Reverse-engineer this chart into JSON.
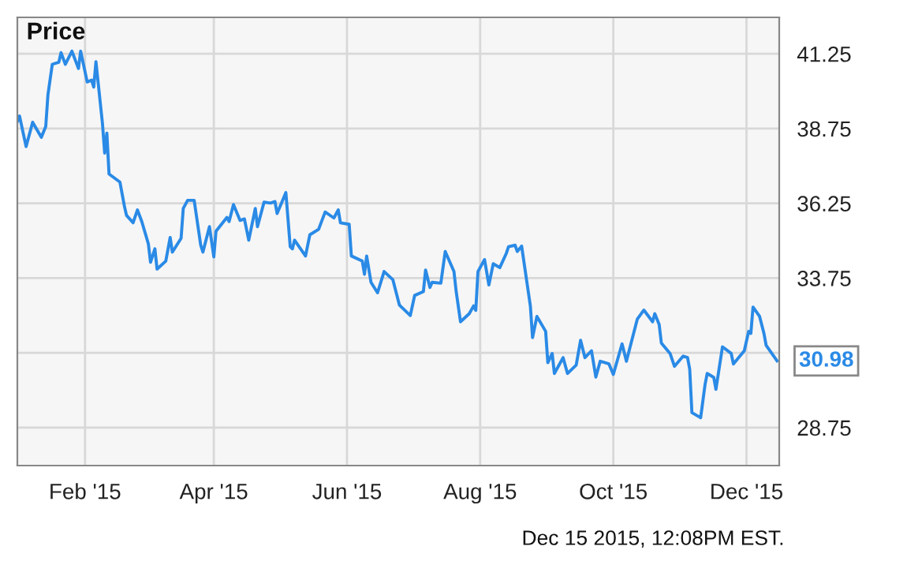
{
  "chart_data": {
    "type": "line",
    "title": "Price",
    "x": [
      "2015-01-01",
      "2015-01-02",
      "2015-01-05",
      "2015-01-08",
      "2015-01-12",
      "2015-01-14",
      "2015-01-15",
      "2015-01-17",
      "2015-01-20",
      "2015-01-21",
      "2015-01-23",
      "2015-01-26",
      "2015-01-29",
      "2015-01-30",
      "2015-02-02",
      "2015-02-04",
      "2015-02-05",
      "2015-02-06",
      "2015-02-09",
      "2015-02-10",
      "2015-02-11",
      "2015-02-12",
      "2015-02-17",
      "2015-02-19",
      "2015-02-20",
      "2015-02-23",
      "2015-02-25",
      "2015-02-27",
      "2015-03-02",
      "2015-03-03",
      "2015-03-05",
      "2015-03-06",
      "2015-03-10",
      "2015-03-12",
      "2015-03-13",
      "2015-03-17",
      "2015-03-18",
      "2015-03-20",
      "2015-03-23",
      "2015-03-26",
      "2015-03-27",
      "2015-03-30",
      "2015-04-01",
      "2015-04-02",
      "2015-04-07",
      "2015-04-08",
      "2015-04-10",
      "2015-04-13",
      "2015-04-15",
      "2015-04-17",
      "2015-04-20",
      "2015-04-21",
      "2015-04-24",
      "2015-04-27",
      "2015-04-29",
      "2015-04-30",
      "2015-05-04",
      "2015-05-06",
      "2015-05-07",
      "2015-05-08",
      "2015-05-13",
      "2015-05-15",
      "2015-05-19",
      "2015-05-22",
      "2015-05-26",
      "2015-05-28",
      "2015-05-29",
      "2015-06-02",
      "2015-06-03",
      "2015-06-08",
      "2015-06-09",
      "2015-06-10",
      "2015-06-12",
      "2015-06-15",
      "2015-06-18",
      "2015-06-22",
      "2015-06-25",
      "2015-06-30",
      "2015-07-02",
      "2015-07-06",
      "2015-07-07",
      "2015-07-09",
      "2015-07-10",
      "2015-07-14",
      "2015-07-16",
      "2015-07-20",
      "2015-07-21",
      "2015-07-23",
      "2015-07-27",
      "2015-07-29",
      "2015-07-30",
      "2015-07-31",
      "2015-08-03",
      "2015-08-05",
      "2015-08-07",
      "2015-08-10",
      "2015-08-13",
      "2015-08-14",
      "2015-08-17",
      "2015-08-18",
      "2015-08-20",
      "2015-08-24",
      "2015-08-25",
      "2015-08-27",
      "2015-08-31",
      "2015-09-01",
      "2015-09-03",
      "2015-09-04",
      "2015-09-08",
      "2015-09-10",
      "2015-09-14",
      "2015-09-16",
      "2015-09-18",
      "2015-09-21",
      "2015-09-23",
      "2015-09-25",
      "2015-09-29",
      "2015-10-01",
      "2015-10-05",
      "2015-10-07",
      "2015-10-12",
      "2015-10-15",
      "2015-10-19",
      "2015-10-20",
      "2015-10-22",
      "2015-10-23",
      "2015-10-27",
      "2015-10-29",
      "2015-11-02",
      "2015-11-04",
      "2015-11-05",
      "2015-11-06",
      "2015-11-10",
      "2015-11-12",
      "2015-11-13",
      "2015-11-16",
      "2015-11-17",
      "2015-11-20",
      "2015-11-24",
      "2015-11-25",
      "2015-11-30",
      "2015-12-02",
      "2015-12-03",
      "2015-12-04",
      "2015-12-07",
      "2015-12-09",
      "2015-12-10",
      "2015-12-15"
    ],
    "series": [
      {
        "color": "#2a8ae6",
        "values": [
          38.99,
          39.17,
          38.15,
          38.96,
          38.46,
          38.82,
          39.87,
          40.9,
          40.97,
          41.29,
          40.9,
          41.34,
          40.76,
          41.34,
          40.31,
          40.37,
          40.14,
          40.99,
          38.91,
          37.93,
          38.6,
          37.23,
          36.96,
          36.17,
          35.85,
          35.6,
          36.03,
          35.64,
          34.9,
          34.28,
          34.73,
          34.05,
          34.32,
          35.11,
          34.62,
          35.08,
          36.08,
          36.35,
          36.35,
          34.85,
          34.62,
          35.47,
          34.46,
          35.32,
          35.78,
          35.64,
          36.21,
          35.68,
          35.73,
          35.02,
          36.08,
          35.47,
          36.29,
          36.26,
          36.31,
          35.91,
          36.61,
          34.8,
          34.73,
          35.02,
          34.49,
          35.2,
          35.38,
          35.96,
          35.76,
          36.03,
          35.6,
          35.55,
          34.49,
          34.32,
          33.88,
          34.49,
          33.61,
          33.26,
          33.97,
          33.7,
          32.85,
          32.5,
          33.17,
          33.3,
          34.02,
          33.44,
          33.61,
          33.58,
          34.64,
          33.97,
          33.31,
          32.29,
          32.56,
          32.82,
          32.67,
          33.97,
          34.37,
          33.52,
          34.23,
          34.1,
          34.58,
          34.8,
          34.85,
          34.64,
          34.82,
          32.82,
          31.76,
          32.47,
          31.97,
          30.92,
          31.23,
          30.56,
          31.09,
          30.56,
          30.84,
          31.67,
          31.09,
          31.32,
          30.44,
          30.97,
          30.88,
          30.53,
          31.55,
          30.97,
          32.38,
          32.68,
          32.29,
          32.56,
          32.2,
          31.58,
          31.23,
          30.8,
          31.14,
          31.09,
          30.7,
          29.25,
          29.08,
          30.18,
          30.56,
          30.43,
          30.03,
          31.45,
          31.23,
          30.88,
          31.32,
          31.97,
          31.9,
          32.78,
          32.47,
          31.9,
          31.5,
          30.98
        ]
      }
    ],
    "xlim": [
      "2015-01-01",
      "2015-12-16"
    ],
    "xticks": [
      {
        "value": "2015-02-01",
        "label": "Feb '15"
      },
      {
        "value": "2015-04-01",
        "label": "Apr '15"
      },
      {
        "value": "2015-06-01",
        "label": "Jun '15"
      },
      {
        "value": "2015-08-01",
        "label": "Aug '15"
      },
      {
        "value": "2015-10-01",
        "label": "Oct '15"
      },
      {
        "value": "2015-12-01",
        "label": "Dec '15"
      }
    ],
    "ylim": [
      27.48,
      42.47
    ],
    "yticks": [
      {
        "value": 28.75,
        "label": "28.75"
      },
      {
        "value": 31.25,
        "label": null
      },
      {
        "value": 33.75,
        "label": "33.75"
      },
      {
        "value": 36.25,
        "label": "36.25"
      },
      {
        "value": 38.75,
        "label": "38.75"
      },
      {
        "value": 41.25,
        "label": "41.25"
      }
    ],
    "grid": true,
    "legend": false,
    "annotations": [
      {
        "text": "30.98",
        "x": "2015-12-15",
        "y": 30.98
      },
      "Dec 15 2015, 12:08PM EST."
    ]
  }
}
